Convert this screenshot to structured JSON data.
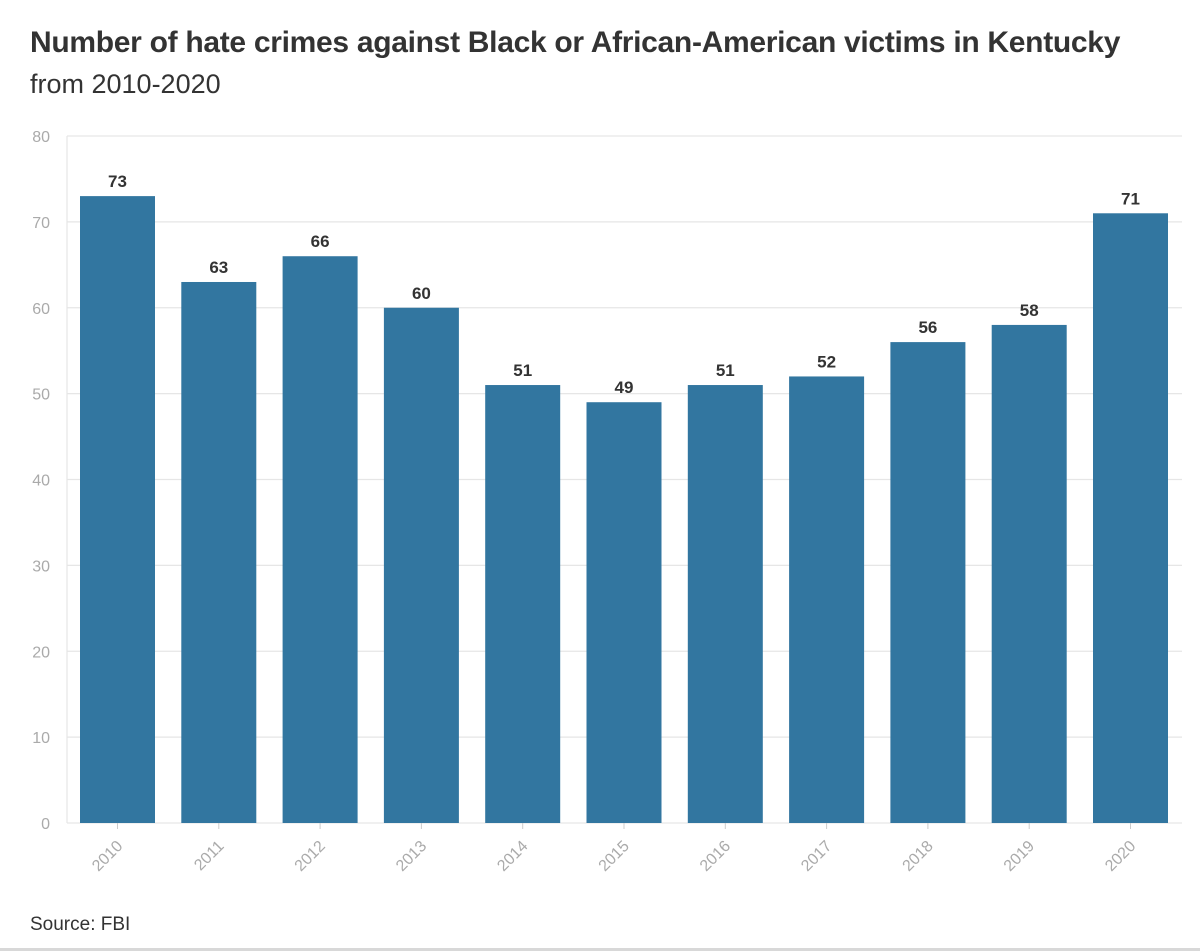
{
  "header": {
    "title": "Number of hate crimes against Black or African-American victims in Kentucky",
    "subtitle": "from 2010-2020"
  },
  "footer": {
    "source": "Source: FBI"
  },
  "colors": {
    "bar": "#3276a0",
    "grid": "#e6e6e6",
    "axis_text": "#aaaaaa",
    "label_text": "#333333"
  },
  "chart_data": {
    "type": "bar",
    "title": "Number of hate crimes against Black or African-American victims in Kentucky",
    "subtitle": "from 2010-2020",
    "xlabel": "",
    "ylabel": "",
    "categories": [
      "2010",
      "2011",
      "2012",
      "2013",
      "2014",
      "2015",
      "2016",
      "2017",
      "2018",
      "2019",
      "2020"
    ],
    "values": [
      73,
      63,
      66,
      60,
      51,
      49,
      51,
      52,
      56,
      58,
      71
    ],
    "ylim": [
      0,
      80
    ],
    "yticks": [
      0,
      10,
      20,
      30,
      40,
      50,
      60,
      70,
      80
    ],
    "grid": true,
    "legend": "none",
    "data_labels": true
  }
}
